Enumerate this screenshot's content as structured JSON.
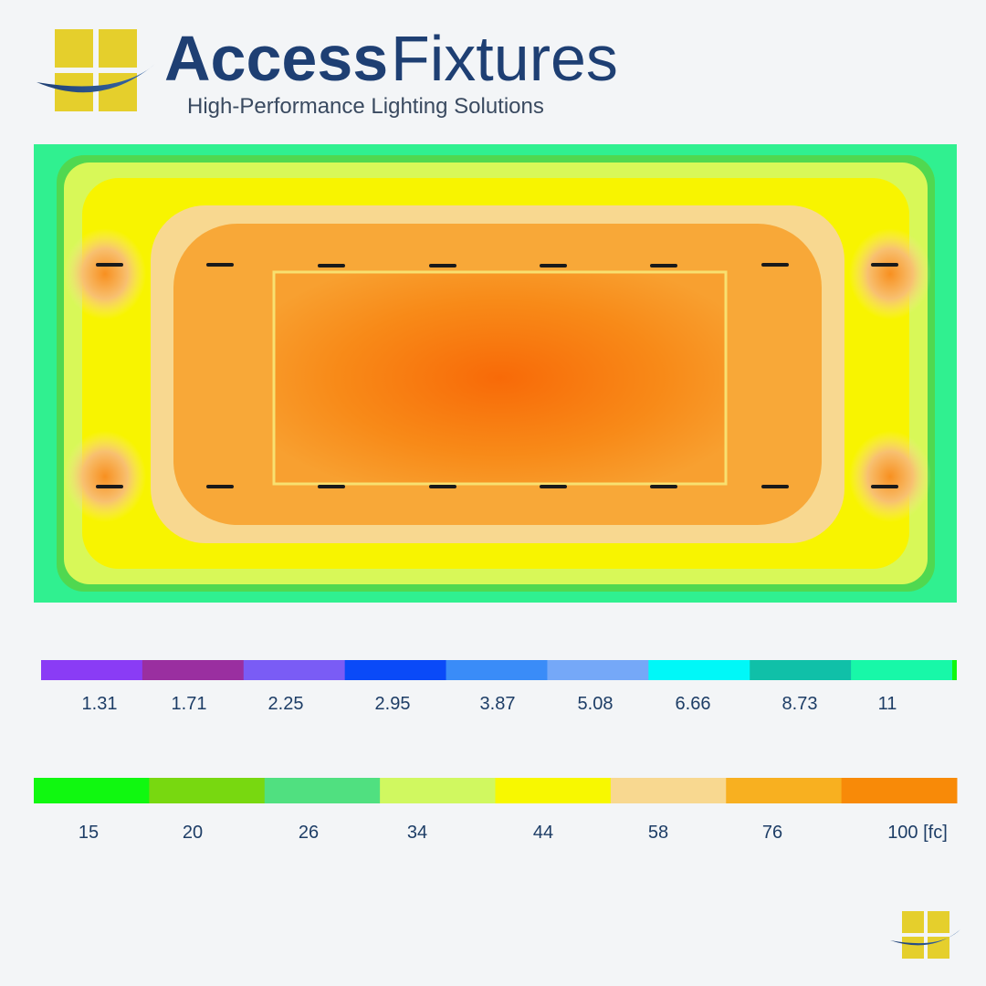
{
  "header": {
    "brand_1": "Access",
    "brand_2": "Fixtures",
    "tagline": "High-Performance Lighting Solutions"
  },
  "legend": {
    "rows": [
      {
        "colors": [
          "#8a3cf5",
          "#9a2fa0",
          "#7a5cf5",
          "#0a4af8",
          "#3a8cf8",
          "#75a8f8",
          "#00f8f8",
          "#10c0a8",
          "#18f8a8"
        ],
        "labels": [
          "1.31",
          "1.71",
          "2.25",
          "2.95",
          "3.87",
          "5.08",
          "6.66",
          "8.73",
          "11"
        ]
      },
      {
        "colors": [
          "#10f810",
          "#78d810",
          "#50e080",
          "#d0f860",
          "#f8f800",
          "#f8d890",
          "#f8b020",
          "#f88a08"
        ],
        "labels": [
          "15",
          "20",
          "26",
          "34",
          "44",
          "58",
          "76",
          "100 [fc]"
        ]
      }
    ]
  }
}
